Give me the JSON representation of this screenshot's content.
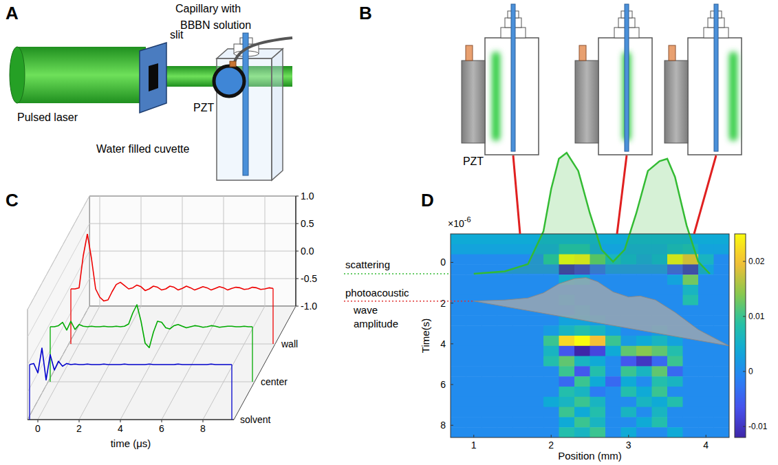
{
  "diagram_a": {
    "letter": "A",
    "capillary_label": [
      "Capillary with",
      "BBBN solution"
    ],
    "slit_label": "slit",
    "laser_label": "Pulsed laser",
    "cuvette_label": "Water filled cuvette",
    "pzt_label": "PZT"
  },
  "diagram_b": {
    "letter": "B",
    "pzt_label": "PZT"
  },
  "chart_data": [
    {
      "panel": "C",
      "type": "line",
      "xlabel": "time (μs)",
      "xlim": [
        -0.5,
        9.5
      ],
      "xticks": [
        0,
        2,
        4,
        6,
        8
      ],
      "ylim": [
        -1,
        1
      ],
      "yticks": [
        {
          "value": -1,
          "label": "-1.0"
        },
        -0.5,
        {
          "value": 0,
          "label": "0.0"
        },
        0.5,
        {
          "value": 1,
          "label": "1.0"
        }
      ],
      "grid": true,
      "x": [
        -0.4,
        -0.2,
        0,
        0.2,
        0.4,
        0.6,
        0.8,
        1,
        1.2,
        1.4,
        1.6,
        1.8,
        2,
        2.2,
        2.4,
        2.6,
        2.8,
        3,
        3.2,
        3.4,
        3.6,
        3.8,
        4,
        4.2,
        4.4,
        4.6,
        4.8,
        5,
        5.2,
        5.4,
        5.6,
        5.8,
        6,
        6.2,
        6.4,
        6.6,
        6.8,
        7,
        7.2,
        7.4,
        7.6,
        7.8,
        8,
        8.2,
        8.4,
        8.6,
        8.8,
        9,
        9.2,
        9.4
      ],
      "series": [
        {
          "name": "solvent",
          "color": "#0000cc",
          "values": [
            0,
            0.02,
            -0.15,
            0.3,
            -0.28,
            0.18,
            -0.1,
            0.06,
            -0.03,
            0.02,
            0,
            0.01,
            0,
            0,
            0.01,
            0,
            0,
            0,
            0.01,
            0,
            0,
            0,
            0,
            0.01,
            0,
            0,
            0,
            0,
            0,
            0.01,
            0,
            0,
            0,
            0,
            0,
            0,
            0.01,
            0,
            0,
            0,
            0,
            0,
            0,
            0,
            0.01,
            0,
            0,
            0,
            0,
            0
          ]
        },
        {
          "name": "center",
          "color": "#00aa00",
          "values": [
            0,
            0,
            0.02,
            0.08,
            -0.06,
            0.1,
            -0.05,
            0.04,
            0.01,
            0,
            0.01,
            0,
            0,
            0.01,
            0,
            0,
            0.01,
            0,
            0.01,
            0.05,
            0.25,
            0.4,
            0.1,
            -0.3,
            -0.38,
            -0.1,
            0.1,
            0.08,
            -0.02,
            -0.04,
            0.02,
            0.04,
            0.01,
            -0.02,
            0,
            0.02,
            0.01,
            -0.01,
            0,
            0.02,
            0.01,
            -0.01,
            0,
            0.01,
            0.01,
            0,
            0,
            0.01,
            0,
            0
          ]
        },
        {
          "name": "wall",
          "color": "#ee0000",
          "values": [
            0,
            0,
            0.02,
            0.6,
            1,
            0.55,
            0,
            -0.15,
            -0.22,
            -0.2,
            -0.05,
            0.08,
            0.12,
            0.06,
            0,
            0.02,
            0.07,
            0.04,
            -0.03,
            0,
            0.05,
            0.03,
            -0.02,
            0,
            0.05,
            0.03,
            -0.02,
            0.01,
            0.05,
            0.02,
            -0.02,
            0.01,
            0.04,
            0.02,
            -0.02,
            0.01,
            0.04,
            0.02,
            -0.02,
            0.01,
            0.03,
            0.02,
            -0.01,
            0,
            0.03,
            0.02,
            -0.01,
            0,
            0.02,
            0.01
          ]
        }
      ]
    },
    {
      "panel": "D",
      "type": "heatmap",
      "xlabel": "Position (mm)",
      "ylabel": "Time(s)",
      "y_scale_label": {
        "base": "×10",
        "exponent": "-6"
      },
      "xlim": [
        0.7,
        4.3
      ],
      "xticks": [
        1,
        2,
        3,
        4
      ],
      "ylim": [
        8.6,
        -1.4
      ],
      "yticks": [
        0,
        2,
        4,
        6,
        8
      ],
      "x_edges": [
        0.7,
        0.9,
        1.1,
        1.3,
        1.5,
        1.7,
        1.9,
        2.1,
        2.3,
        2.5,
        2.7,
        2.9,
        3.1,
        3.3,
        3.5,
        3.7,
        3.9,
        4.1,
        4.3
      ],
      "y_edges": [
        -1.4,
        -0.9,
        -0.4,
        0.1,
        0.6,
        1.1,
        1.6,
        2.1,
        2.6,
        3.1,
        3.6,
        4.1,
        4.6,
        5.1,
        5.6,
        6.1,
        6.6,
        7.1,
        7.6,
        8.1,
        8.6
      ],
      "cells": [
        [
          0.004,
          0.004,
          0.004,
          0.004,
          0.004,
          0.004,
          0.004,
          0.004,
          0.004,
          0.004,
          0.004,
          0.004,
          0.004,
          0.004,
          0.004,
          0.004,
          0.004,
          0.004
        ],
        [
          0.003,
          0.003,
          0.003,
          0.003,
          0.003,
          0.003,
          0.003,
          0.007,
          0.007,
          0.003,
          0.003,
          0.003,
          0.003,
          0.003,
          0.005,
          0.006,
          0.003,
          0.003
        ],
        [
          0,
          0,
          0,
          0,
          0,
          0,
          0.008,
          0.025,
          0.024,
          0.012,
          0.006,
          0.004,
          0.002,
          0.004,
          0.024,
          0.02,
          0.006,
          0
        ],
        [
          0,
          0,
          0,
          0,
          0,
          0,
          0,
          -0.011,
          -0.009,
          -0.004,
          0,
          0,
          0,
          0,
          -0.006,
          -0.01,
          0.003,
          0
        ],
        [
          0,
          0,
          0,
          0,
          0,
          0,
          0,
          0.005,
          0.004,
          0,
          0,
          0,
          0,
          0,
          0.003,
          0.013,
          0,
          0
        ],
        [
          0,
          0,
          0,
          0,
          0,
          0,
          0,
          0,
          0,
          0,
          0,
          0,
          0,
          0,
          0,
          0.006,
          0,
          0
        ],
        [
          0,
          0,
          0,
          0,
          0,
          0,
          0,
          0.002,
          0,
          0,
          0,
          0,
          0,
          0,
          0,
          0.008,
          0,
          0
        ],
        [
          0,
          0,
          0,
          0,
          0,
          0,
          0,
          0,
          0.002,
          0,
          0,
          0,
          0,
          0,
          0,
          0,
          0,
          0
        ],
        [
          0,
          0,
          0,
          0,
          0,
          0,
          0,
          0.003,
          0.003,
          0.002,
          0,
          0,
          0,
          0,
          0,
          0,
          0,
          0
        ],
        [
          0,
          0,
          0,
          0,
          0,
          0,
          0.002,
          0.006,
          0.008,
          0.006,
          0.003,
          0,
          0,
          0.002,
          0,
          0,
          0,
          0
        ],
        [
          0,
          0,
          0,
          0,
          0,
          0,
          0.01,
          0.022,
          0.025,
          0.02,
          0.01,
          0.002,
          0.004,
          0.006,
          0.003,
          0,
          0,
          0
        ],
        [
          0,
          0,
          0,
          0,
          0,
          0,
          0.006,
          -0.006,
          -0.012,
          -0.008,
          0.004,
          0.012,
          0.014,
          0.012,
          0.008,
          0,
          0,
          0
        ],
        [
          0,
          0,
          0,
          0,
          0,
          0,
          0.008,
          0.012,
          0.006,
          0.004,
          0,
          -0.006,
          -0.01,
          -0.004,
          0.01,
          0,
          0,
          0
        ],
        [
          0,
          0,
          0,
          0,
          0,
          0,
          0,
          0.01,
          -0.006,
          0.008,
          0,
          0.01,
          0.006,
          0.012,
          -0.004,
          0,
          0,
          0
        ],
        [
          0,
          0,
          0,
          0,
          0,
          0,
          0,
          -0.004,
          0.01,
          0.004,
          -0.004,
          0.004,
          0,
          0.008,
          0.006,
          0,
          0,
          0
        ],
        [
          0,
          0,
          0,
          0,
          0,
          0,
          0,
          0.008,
          0.006,
          -0.002,
          0,
          0.008,
          0.004,
          0.01,
          0,
          0,
          0,
          0
        ],
        [
          0,
          0,
          0,
          0,
          0,
          0,
          0.004,
          0.006,
          0.01,
          0.006,
          0,
          0,
          0.006,
          0.004,
          0.008,
          0,
          0,
          0
        ],
        [
          0,
          0,
          0,
          0,
          0,
          0,
          0,
          0.01,
          0.004,
          0.008,
          0,
          0.006,
          0,
          0.006,
          0,
          0,
          0,
          0
        ],
        [
          0,
          0,
          0,
          0,
          0,
          0,
          0,
          0.004,
          0.01,
          0.006,
          0,
          0,
          0.004,
          0.008,
          0,
          0,
          0,
          0
        ],
        [
          0,
          0,
          0,
          0,
          0,
          0,
          0,
          0.008,
          0.006,
          0.01,
          0,
          0.004,
          0,
          0,
          0.004,
          0,
          0,
          0
        ]
      ],
      "color_lim": [
        -0.012,
        0.025
      ],
      "color_ticks": [
        -0.01,
        0,
        0.01,
        0.02
      ],
      "curves": [
        {
          "name": "scattering",
          "color": "#33bb33",
          "x": [
            1.0,
            1.4,
            1.7,
            1.9,
            2.0,
            2.1,
            2.2,
            2.35,
            2.5,
            2.65,
            2.8,
            2.95,
            3.1,
            3.25,
            3.4,
            3.5,
            3.6,
            3.75,
            3.9,
            4.05
          ],
          "values": [
            0,
            0.02,
            0.08,
            0.35,
            0.7,
            0.95,
            1,
            0.85,
            0.5,
            0.2,
            0.1,
            0.2,
            0.5,
            0.85,
            0.93,
            0.95,
            0.8,
            0.4,
            0.1,
            0
          ],
          "ylim": [
            0,
            1
          ]
        },
        {
          "name": "photoacoustic wave amplitude",
          "color": "#aaaaaa",
          "x": [
            1.0,
            1.4,
            1.7,
            1.9,
            2.1,
            2.3,
            2.45,
            2.6,
            2.8,
            3.0,
            3.15,
            3.35,
            3.6,
            3.9,
            4.3
          ],
          "values": [
            1.9,
            1.85,
            1.75,
            1.5,
            1.05,
            0.8,
            0.75,
            0.95,
            1.45,
            1.7,
            1.65,
            1.85,
            2.45,
            3.3,
            4.1
          ]
        }
      ]
    }
  ]
}
